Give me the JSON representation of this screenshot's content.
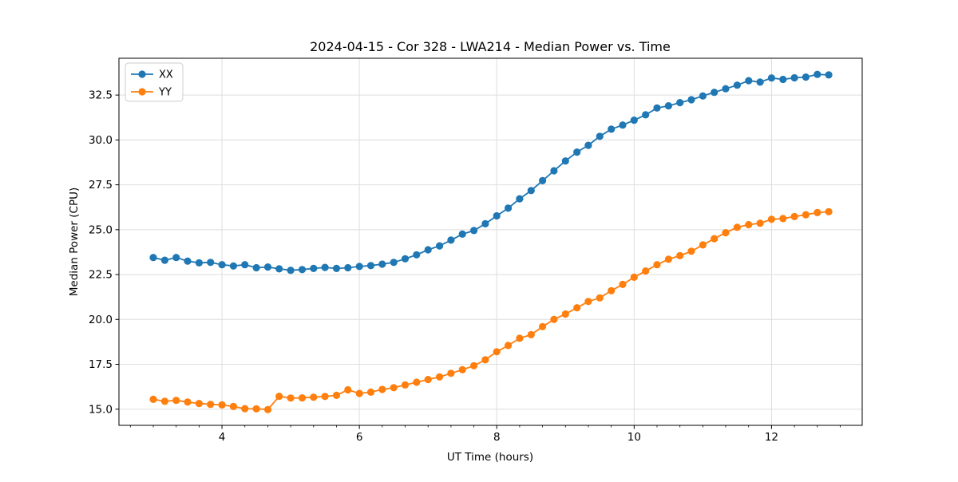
{
  "figure": {
    "background": "#ffffff",
    "spine_color": "#000000",
    "grid_color": "#dedede"
  },
  "chart_data": {
    "type": "line",
    "title": "2024-04-15 - Cor 328 - LWA214 - Median Power vs. Time",
    "xlabel": "UT Time (hours)",
    "ylabel": "Median Power (CPU)",
    "xlim": [
      2.5,
      13.32
    ],
    "ylim": [
      14.1,
      34.55
    ],
    "x_major_ticks": [
      4,
      6,
      8,
      10,
      12
    ],
    "x_minor_tick_step": 0.33333,
    "y_major_ticks": [
      15.0,
      17.5,
      20.0,
      22.5,
      25.0,
      27.5,
      30.0,
      32.5
    ],
    "grid": true,
    "legend_position": "upper-left",
    "marker": "circle",
    "x": [
      3,
      3.167,
      3.333,
      3.5,
      3.667,
      3.833,
      4,
      4.167,
      4.333,
      4.5,
      4.667,
      4.833,
      5,
      5.167,
      5.333,
      5.5,
      5.667,
      5.833,
      6,
      6.167,
      6.333,
      6.5,
      6.667,
      6.833,
      7,
      7.167,
      7.333,
      7.5,
      7.667,
      7.833,
      8,
      8.167,
      8.333,
      8.5,
      8.667,
      8.833,
      9,
      9.167,
      9.333,
      9.5,
      9.667,
      9.833,
      10,
      10.167,
      10.333,
      10.5,
      10.667,
      10.833,
      11,
      11.167,
      11.333,
      11.5,
      11.667,
      11.833,
      12,
      12.167,
      12.333,
      12.5,
      12.667,
      12.833
    ],
    "series": [
      {
        "name": "XX",
        "color": "#1f77b4",
        "values": [
          23.45,
          23.3,
          23.45,
          23.25,
          23.15,
          23.18,
          23.05,
          22.98,
          23.05,
          22.88,
          22.92,
          22.82,
          22.74,
          22.78,
          22.84,
          22.9,
          22.84,
          22.88,
          22.95,
          23.0,
          23.08,
          23.18,
          23.38,
          23.6,
          23.88,
          24.1,
          24.42,
          24.75,
          24.95,
          25.33,
          25.77,
          26.2,
          26.72,
          27.18,
          27.73,
          28.28,
          28.83,
          29.32,
          29.7,
          30.2,
          30.6,
          30.83,
          31.1,
          31.4,
          31.78,
          31.9,
          32.08,
          32.24,
          32.45,
          32.65,
          32.85,
          33.05,
          33.3,
          33.22,
          33.45,
          33.37,
          33.46,
          33.5,
          33.65,
          33.62
        ]
      },
      {
        "name": "YY",
        "color": "#ff7f0e",
        "values": [
          15.55,
          15.44,
          15.49,
          15.4,
          15.32,
          15.27,
          15.24,
          15.15,
          15.03,
          15.02,
          14.98,
          15.72,
          15.62,
          15.63,
          15.67,
          15.71,
          15.77,
          16.08,
          15.88,
          15.95,
          16.1,
          16.2,
          16.35,
          16.5,
          16.65,
          16.8,
          17.0,
          17.2,
          17.42,
          17.75,
          18.2,
          18.55,
          18.95,
          19.15,
          19.6,
          20.0,
          20.3,
          20.65,
          21.0,
          21.2,
          21.6,
          21.95,
          22.35,
          22.7,
          23.05,
          23.35,
          23.55,
          23.8,
          24.15,
          24.5,
          24.83,
          25.13,
          25.28,
          25.36,
          25.58,
          25.62,
          25.73,
          25.83,
          25.95,
          26.0
        ]
      }
    ]
  }
}
